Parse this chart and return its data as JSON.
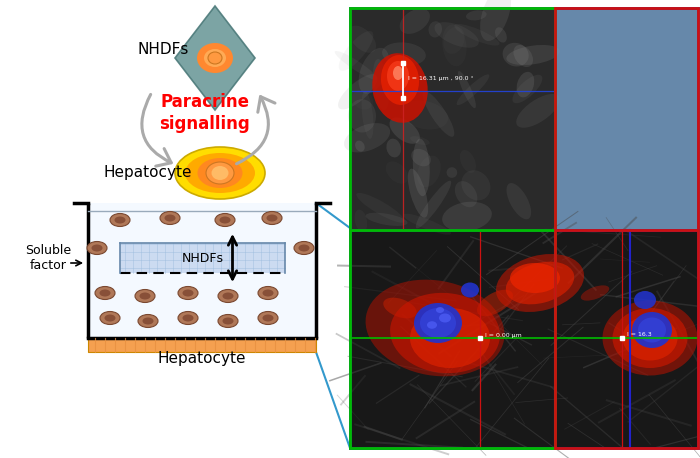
{
  "fig_width": 7.0,
  "fig_height": 4.58,
  "dpi": 100,
  "bg_color": "#ffffff",
  "nhdf_label": "NHDFs",
  "hepatocyte_label": "Hepatocyte",
  "paracrine_label": "Paracrine\nsignalling",
  "soluble_label": "Soluble\nfactor",
  "nhdfs_inner_label": "NHDFs",
  "paracrine_color": "#ff0000",
  "orange_base_color": "#f5a050",
  "blue_insert_color": "#c8d8f0",
  "microscopy_bg": "#282828",
  "grid_green": "#00bb00",
  "grid_blue": "#2222cc",
  "grid_red": "#cc1111",
  "grid_magenta": "#cc00cc",
  "cell_brown_outer": "#a07050",
  "cell_brown_inner": "#704030",
  "diamond_color": "#6a9898",
  "arrow_gray": "#aaaaaa",
  "blue_steel": "#6688aa"
}
